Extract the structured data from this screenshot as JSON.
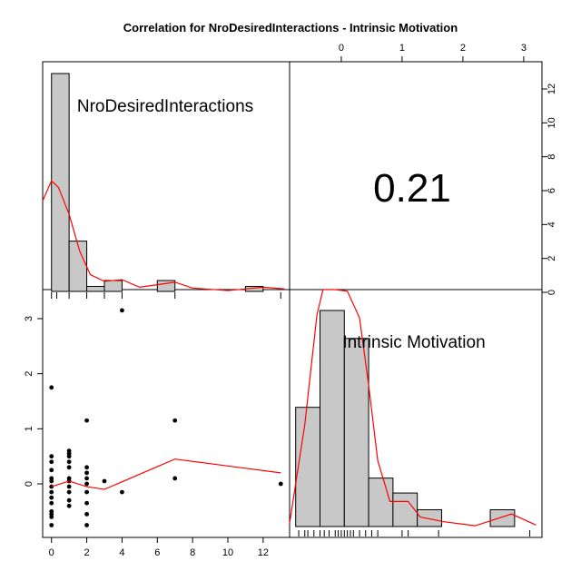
{
  "chart_data": {
    "type": "pairs-correlation-matrix",
    "title": "Correlation  for NroDesiredInteractions - Intrinsic Motivation",
    "variables": [
      "NroDesiredInteractions",
      "Intrinsic Motivation"
    ],
    "correlation_label": "0.21",
    "colors": {
      "bar_fill": "#c8c8c8",
      "density_line": "#ff0000",
      "points": "#000000",
      "lowess_line": "#ff0000"
    },
    "x_axis": {
      "label": "",
      "range": [
        -0.5,
        13.5
      ],
      "ticks": [
        0,
        2,
        4,
        6,
        8,
        10,
        12
      ]
    },
    "y_axis": {
      "label": "",
      "range": [
        -0.85,
        3.3
      ],
      "ticks": [
        0,
        1,
        2,
        3
      ]
    },
    "top_axis": {
      "label": "",
      "range": [
        -0.85,
        3.3
      ],
      "ticks": [
        0,
        1,
        2,
        3
      ]
    },
    "right_axis": {
      "label": "",
      "range": [
        -0.5,
        13.5
      ],
      "ticks": [
        0,
        2,
        4,
        6,
        8,
        10,
        12
      ]
    },
    "histogram_1": {
      "bin_edges": [
        0,
        1,
        2,
        3,
        4,
        5,
        6,
        7,
        8,
        9,
        10,
        11,
        12,
        13
      ],
      "counts": [
        13,
        3,
        0.3,
        0.65,
        0,
        0,
        0.65,
        0,
        0,
        0,
        0,
        0.3,
        0,
        0
      ]
    },
    "histogram_2": {
      "bin_edges": [
        -0.75,
        -0.25,
        0.0,
        0.25,
        0.5,
        1.0,
        1.25,
        1.75,
        2.75,
        3.25
      ],
      "counts": [
        9,
        15.5,
        13.5,
        3.5,
        2.7,
        1.2,
        0,
        1,
        0
      ],
      "draw_edges": [
        -0.75,
        -0.35,
        0.05,
        0.45,
        0.85,
        1.25,
        1.65,
        2.05,
        2.45,
        2.85,
        3.25
      ],
      "draw_counts": [
        6.4,
        11.6,
        10.1,
        2.6,
        1.8,
        0.9,
        0,
        0,
        0.9
      ]
    },
    "density_1": [
      [
        -0.5,
        5.4
      ],
      [
        0,
        6.6
      ],
      [
        0.4,
        6.2
      ],
      [
        1,
        4.6
      ],
      [
        1.6,
        2.4
      ],
      [
        2.2,
        1.0
      ],
      [
        3,
        0.6
      ],
      [
        4,
        0.7
      ],
      [
        5,
        0.25
      ],
      [
        6,
        0.4
      ],
      [
        7,
        0.55
      ],
      [
        8,
        0.2
      ],
      [
        10,
        0.05
      ],
      [
        12,
        0.25
      ],
      [
        13.2,
        0.15
      ]
    ],
    "density_2": [
      [
        -0.85,
        0.2
      ],
      [
        -0.6,
        6.5
      ],
      [
        -0.4,
        13.5
      ],
      [
        -0.3,
        15.8
      ],
      [
        -0.1,
        16.2
      ],
      [
        0.1,
        15
      ],
      [
        0.3,
        13.3
      ],
      [
        0.45,
        9
      ],
      [
        0.6,
        4.2
      ],
      [
        0.8,
        1.6
      ],
      [
        1.1,
        1.6
      ],
      [
        1.3,
        0.6
      ],
      [
        1.7,
        0.3
      ],
      [
        2.2,
        0.05
      ],
      [
        2.8,
        0.8
      ],
      [
        3.2,
        0.1
      ]
    ],
    "rug_1": [
      0,
      0.3,
      1,
      2,
      3,
      4,
      7,
      13
    ],
    "rug_2": [
      -0.7,
      -0.6,
      -0.55,
      -0.45,
      -0.35,
      -0.28,
      -0.2,
      -0.1,
      -0.05,
      0,
      0.05,
      0.1,
      0.15,
      0.2,
      0.3,
      0.4,
      0.5,
      0.6,
      1.0,
      1.1,
      1.6,
      3.1
    ],
    "scatter_points": [
      [
        0,
        1.75
      ],
      [
        0,
        0.5
      ],
      [
        0,
        0.4
      ],
      [
        0,
        0.25
      ],
      [
        0,
        0.1
      ],
      [
        0,
        0.05
      ],
      [
        0,
        -0.05
      ],
      [
        0,
        -0.15
      ],
      [
        0,
        -0.25
      ],
      [
        0,
        -0.35
      ],
      [
        0,
        -0.5
      ],
      [
        0,
        -0.55
      ],
      [
        0,
        -0.6
      ],
      [
        0,
        -0.75
      ],
      [
        1,
        0.6
      ],
      [
        1,
        0.55
      ],
      [
        1,
        0.5
      ],
      [
        1,
        0.4
      ],
      [
        1,
        0.3
      ],
      [
        1,
        0.1
      ],
      [
        1,
        0.05
      ],
      [
        1,
        -0.05
      ],
      [
        1,
        -0.15
      ],
      [
        1,
        -0.3
      ],
      [
        1,
        -0.4
      ],
      [
        2,
        1.15
      ],
      [
        2,
        0.3
      ],
      [
        2,
        0.2
      ],
      [
        2,
        0.1
      ],
      [
        2,
        0.0
      ],
      [
        2,
        -0.15
      ],
      [
        2,
        -0.35
      ],
      [
        2,
        -0.55
      ],
      [
        2,
        -0.75
      ],
      [
        3,
        0.05
      ],
      [
        4,
        3.15
      ],
      [
        4,
        -0.15
      ],
      [
        7,
        1.15
      ],
      [
        7,
        0.1
      ],
      [
        13,
        0.0
      ]
    ],
    "lowess_line": [
      [
        0,
        -0.05
      ],
      [
        1,
        0.05
      ],
      [
        2,
        -0.05
      ],
      [
        3,
        -0.1
      ],
      [
        7,
        0.45
      ],
      [
        13,
        0.2
      ]
    ]
  }
}
